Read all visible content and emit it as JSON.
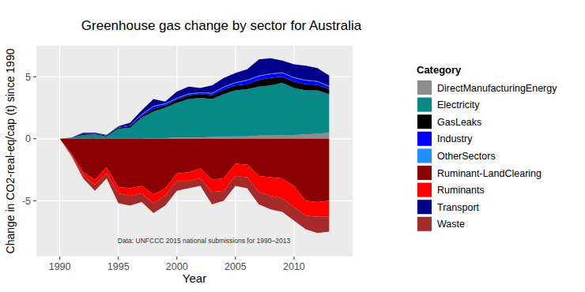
{
  "chart_data": {
    "type": "area",
    "stacked": true,
    "title": "Greenhouse gas change by sector for Australia",
    "x_label": "Year",
    "y_label": "Change in CO2-real-eq/cap (t) since 1990",
    "legend_title": "Category",
    "legend": "right",
    "grid": true,
    "annotations": [
      "Data: UNFCCC 2015 national submissions for 1990–2013"
    ],
    "x": [
      1990,
      1991,
      1992,
      1993,
      1994,
      1995,
      1996,
      1997,
      1998,
      1999,
      2000,
      2001,
      2002,
      2003,
      2004,
      2005,
      2006,
      2007,
      2008,
      2009,
      2010,
      2011,
      2012,
      2013
    ],
    "xlim": [
      1988,
      2015
    ],
    "xticks": [
      1990,
      1995,
      2000,
      2005,
      2010
    ],
    "ylim": [
      -9.5,
      7.5
    ],
    "yticks": [
      -5,
      0,
      5
    ],
    "series": [
      {
        "name": "DirectManufacturingEnergy",
        "color": "#8c8c8c",
        "values": [
          0,
          0,
          0,
          0,
          0,
          0,
          0,
          0,
          0.05,
          0.05,
          0.1,
          0.1,
          0.1,
          0.15,
          0.15,
          0.2,
          0.2,
          0.25,
          0.25,
          0.3,
          0.3,
          0.35,
          0.4,
          0.5
        ]
      },
      {
        "name": "Electricity",
        "color": "#078a87",
        "values": [
          0,
          0.1,
          0.3,
          0.35,
          0.2,
          0.8,
          0.9,
          1.7,
          2.15,
          2.45,
          2.8,
          3.1,
          3.2,
          3.05,
          3.45,
          3.7,
          3.8,
          3.95,
          4.05,
          4.2,
          3.8,
          3.55,
          3.5,
          3.1
        ]
      },
      {
        "name": "GasLeaks",
        "color": "#000000",
        "values": [
          0,
          0,
          0.1,
          0.05,
          0.05,
          0.1,
          0.1,
          0.15,
          0.2,
          0.2,
          0.25,
          0.3,
          0.3,
          0.3,
          0.35,
          0.4,
          0.4,
          0.55,
          0.6,
          0.5,
          0.5,
          0.5,
          0.45,
          0.4
        ]
      },
      {
        "name": "Industry",
        "color": "#0000ff",
        "values": [
          0,
          0,
          0.05,
          0.05,
          0,
          0.05,
          0.1,
          0.1,
          0.2,
          0.1,
          0.1,
          0.1,
          0.1,
          0.15,
          0.2,
          0.2,
          0.3,
          0.3,
          0.3,
          0.3,
          0.3,
          0.3,
          0.25,
          0.2
        ]
      },
      {
        "name": "OtherSectors",
        "color": "#1e90ff",
        "values": [
          0,
          0,
          0,
          0,
          0,
          0,
          0,
          0.05,
          0.05,
          0.05,
          0.05,
          0.05,
          0.05,
          0.05,
          0.05,
          0.05,
          0.05,
          0.05,
          0.05,
          0.05,
          0.05,
          0.05,
          0.05,
          0.05
        ]
      },
      {
        "name": "Ruminant-LandClearing",
        "color": "#8b0000",
        "values": [
          0,
          -1.2,
          -2.7,
          -3.3,
          -2.3,
          -3.9,
          -4.0,
          -3.8,
          -4.5,
          -4.0,
          -2.8,
          -2.7,
          -2.4,
          -3.3,
          -3.2,
          -2.0,
          -2.1,
          -3.0,
          -3.1,
          -3.2,
          -3.8,
          -5.0,
          -5.1,
          -5.0
        ]
      },
      {
        "name": "Ruminants",
        "color": "#ff0000",
        "values": [
          0,
          -0.1,
          -0.3,
          -0.4,
          -0.5,
          -0.5,
          -0.6,
          -0.6,
          -0.7,
          -0.6,
          -0.6,
          -0.7,
          -0.8,
          -1.0,
          -1.0,
          -1.0,
          -1.0,
          -1.3,
          -1.5,
          -1.6,
          -1.7,
          -1.2,
          -1.2,
          -1.3
        ]
      },
      {
        "name": "Transport",
        "color": "#00008b",
        "values": [
          0,
          0,
          0.05,
          0.05,
          0.05,
          0.05,
          0.2,
          0.3,
          0.55,
          0.15,
          0.5,
          0.55,
          0.35,
          0.6,
          0.7,
          0.75,
          0.85,
          1.3,
          1.25,
          0.95,
          1.05,
          1.15,
          1.05,
          0.85
        ]
      },
      {
        "name": "Waste",
        "color": "#a52a2a",
        "values": [
          0,
          -0.1,
          -0.2,
          -0.5,
          -0.4,
          -0.8,
          -0.8,
          -0.7,
          -0.8,
          -0.8,
          -0.8,
          -0.6,
          -0.6,
          -1.0,
          -0.8,
          -0.8,
          -0.9,
          -1.0,
          -1.1,
          -1.1,
          -1.1,
          -1.1,
          -1.3,
          -1.2
        ]
      }
    ]
  }
}
